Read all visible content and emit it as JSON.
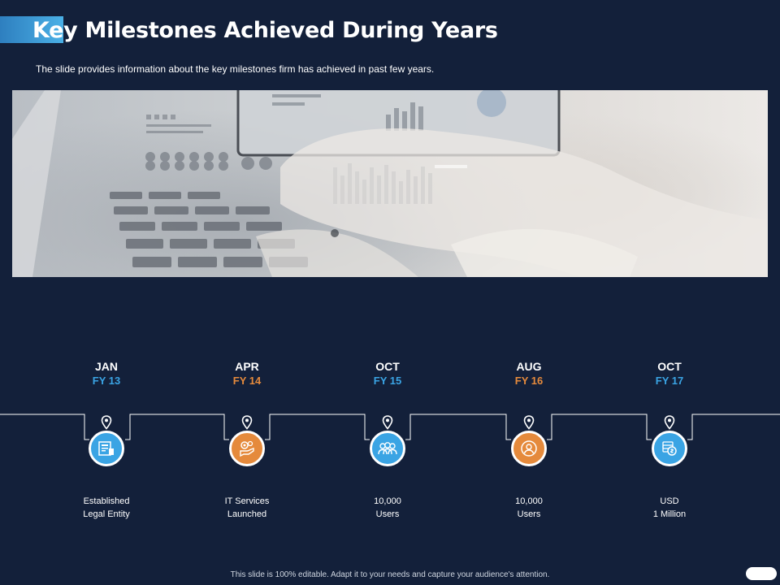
{
  "title": "Key Milestones Achieved During Years",
  "subtitle": "The slide provides information about the key milestones firm has achieved in past few years.",
  "milestones": [
    {
      "month": "JAN",
      "fy": "FY 13",
      "desc1": "Established",
      "desc2": "Legal  Entity",
      "color": "blue",
      "icon": "legal-document-icon"
    },
    {
      "month": "APR",
      "fy": "FY 14",
      "desc1": "IT Services",
      "desc2": "Launched",
      "color": "orange",
      "icon": "gear-hand-icon"
    },
    {
      "month": "OCT",
      "fy": "FY 15",
      "desc1": "10,000",
      "desc2": "Users",
      "color": "blue",
      "icon": "users-group-icon"
    },
    {
      "month": "AUG",
      "fy": "FY 16",
      "desc1": "10,000",
      "desc2": "Users",
      "color": "orange",
      "icon": "user-circle-icon"
    },
    {
      "month": "OCT",
      "fy": "FY 17",
      "desc1": "USD",
      "desc2": "1 Million",
      "color": "blue",
      "icon": "money-icon"
    }
  ],
  "footer": "This slide is 100% editable. Adapt it to your needs and capture your audience's attention.",
  "colors": {
    "background": "#13203a",
    "accent_blue": "#3aa4e4",
    "accent_orange": "#e58a3c"
  }
}
